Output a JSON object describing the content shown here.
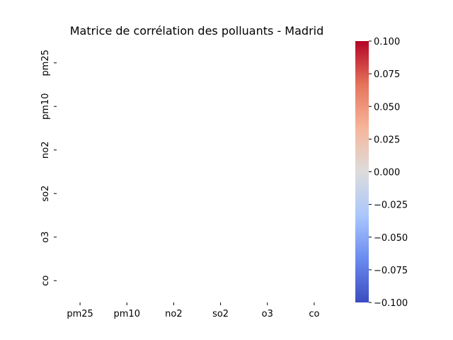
{
  "chart_data": {
    "type": "heatmap",
    "title": "Matrice de corrélation des polluants - Madrid",
    "xlabel": "",
    "ylabel": "",
    "x_categories": [
      "pm25",
      "pm10",
      "no2",
      "so2",
      "o3",
      "co"
    ],
    "y_categories": [
      "pm25",
      "pm10",
      "no2",
      "so2",
      "o3",
      "co"
    ],
    "values": [
      [
        null,
        null,
        null,
        null,
        null,
        null
      ],
      [
        null,
        null,
        null,
        null,
        null,
        null
      ],
      [
        null,
        null,
        null,
        null,
        null,
        null
      ],
      [
        null,
        null,
        null,
        null,
        null,
        null
      ],
      [
        null,
        null,
        null,
        null,
        null,
        null
      ],
      [
        null,
        null,
        null,
        null,
        null,
        null
      ]
    ],
    "colormap": "coolwarm",
    "colorbar": {
      "range": [
        -0.1,
        0.1
      ],
      "ticks": [
        0.1,
        0.075,
        0.05,
        0.025,
        0.0,
        -0.025,
        -0.05,
        -0.075,
        -0.1
      ],
      "tick_labels": [
        "0.100",
        "0.075",
        "0.050",
        "0.025",
        "0.000",
        "−0.025",
        "−0.050",
        "−0.075",
        "−0.100"
      ],
      "colors": [
        "#3b4cc0",
        "#6a8bef",
        "#aac7fd",
        "#dddcdc",
        "#f6b69b",
        "#e6745b",
        "#b40426"
      ]
    }
  }
}
